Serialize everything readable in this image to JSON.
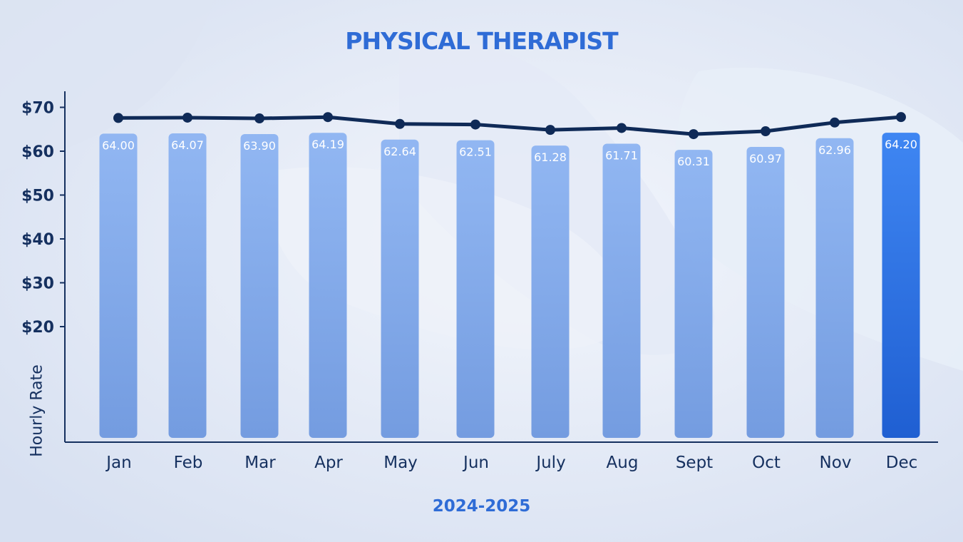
{
  "chart_data": {
    "type": "bar",
    "title": "PHYSICAL THERAPIST",
    "xlabel": "2024-2025",
    "ylabel": "Hourly Rate",
    "categories": [
      "Jan",
      "Feb",
      "Mar",
      "Apr",
      "May",
      "Jun",
      "July",
      "Aug",
      "Sept",
      "Oct",
      "Nov",
      "Dec"
    ],
    "values": [
      64.0,
      64.07,
      63.9,
      64.19,
      62.64,
      62.51,
      61.28,
      61.71,
      60.31,
      60.97,
      62.96,
      64.2
    ],
    "value_labels": [
      "64.00",
      "64.07",
      "63.90",
      "64.19",
      "62.64",
      "62.51",
      "61.28",
      "61.71",
      "60.31",
      "60.97",
      "62.96",
      "64.20"
    ],
    "line_overlay": true,
    "ytick_labels": [
      "$20",
      "$30",
      "$40",
      "$50",
      "$60",
      "$70"
    ],
    "yticks": [
      20,
      30,
      40,
      50,
      60,
      70
    ],
    "grid": false,
    "highlight_category": "Dec",
    "colors": {
      "title": "#2f6cd6",
      "bar": "#7aa6ea",
      "bar_highlight": "#2b6fe0",
      "line": "#0f2a57",
      "axis": "#15305f",
      "value_label": "#ffffff"
    }
  }
}
